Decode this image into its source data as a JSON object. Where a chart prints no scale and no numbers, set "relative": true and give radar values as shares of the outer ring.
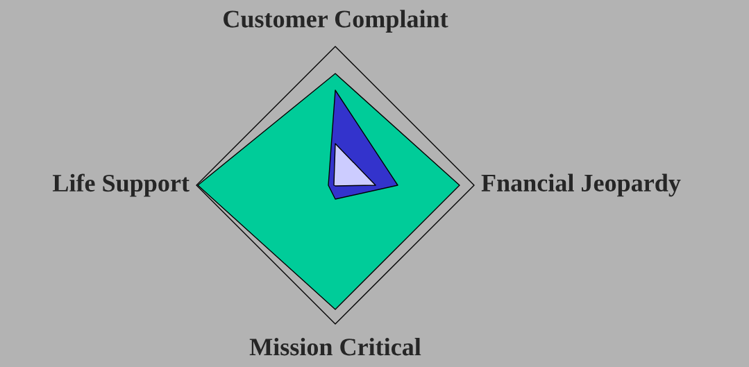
{
  "chart_data": {
    "type": "radar",
    "relative": true,
    "grid": true,
    "categories": [
      "Customer Complaint",
      "Fnancial Jeopardy",
      "Mission Critical",
      "Life Support"
    ],
    "series": [
      {
        "color": "#00cc99",
        "values": [
          0.805,
          0.895,
          0.895,
          0.99
        ]
      },
      {
        "color": "#3333cc",
        "values": [
          0.685,
          0.45,
          0.1,
          0.05
        ]
      },
      {
        "color": "#ccccff",
        "values": [
          0.3,
          0.29,
          0.005,
          0.01
        ]
      }
    ]
  }
}
